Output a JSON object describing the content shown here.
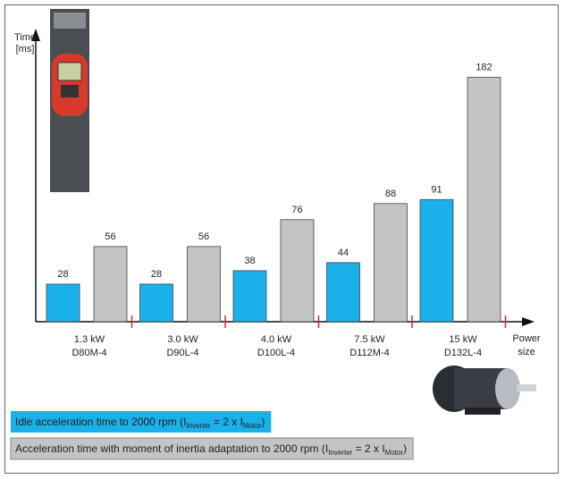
{
  "chart_data": {
    "type": "bar",
    "y_label": [
      "Time",
      "[ms]"
    ],
    "x_label": [
      "Power",
      "size"
    ],
    "categories": [
      [
        "1.3 kW",
        "D80M-4"
      ],
      [
        "3.0 kW",
        "D90L-4"
      ],
      [
        "4.0 kW",
        "D100L-4"
      ],
      [
        "7.5 kW",
        "D112M-4"
      ],
      [
        "15 kW",
        "D132L-4"
      ]
    ],
    "series": [
      {
        "name": [
          "Idle acceleration time to 2000 rpm (I",
          "Inverter",
          " = 2 x I",
          "Motor",
          ")"
        ],
        "color": "#1ab0ea",
        "values": [
          28,
          28,
          38,
          44,
          91
        ]
      },
      {
        "name": [
          "Acceleration time with moment of inertia adaptation to 2000 rpm (I",
          "Inverter",
          " = 2 x I",
          "Motor",
          ")"
        ],
        "color": "#c4c4c4",
        "values": [
          56,
          56,
          76,
          88,
          182
        ]
      }
    ],
    "ylim": [
      0,
      213
    ],
    "separator_color": "#e0262b"
  }
}
